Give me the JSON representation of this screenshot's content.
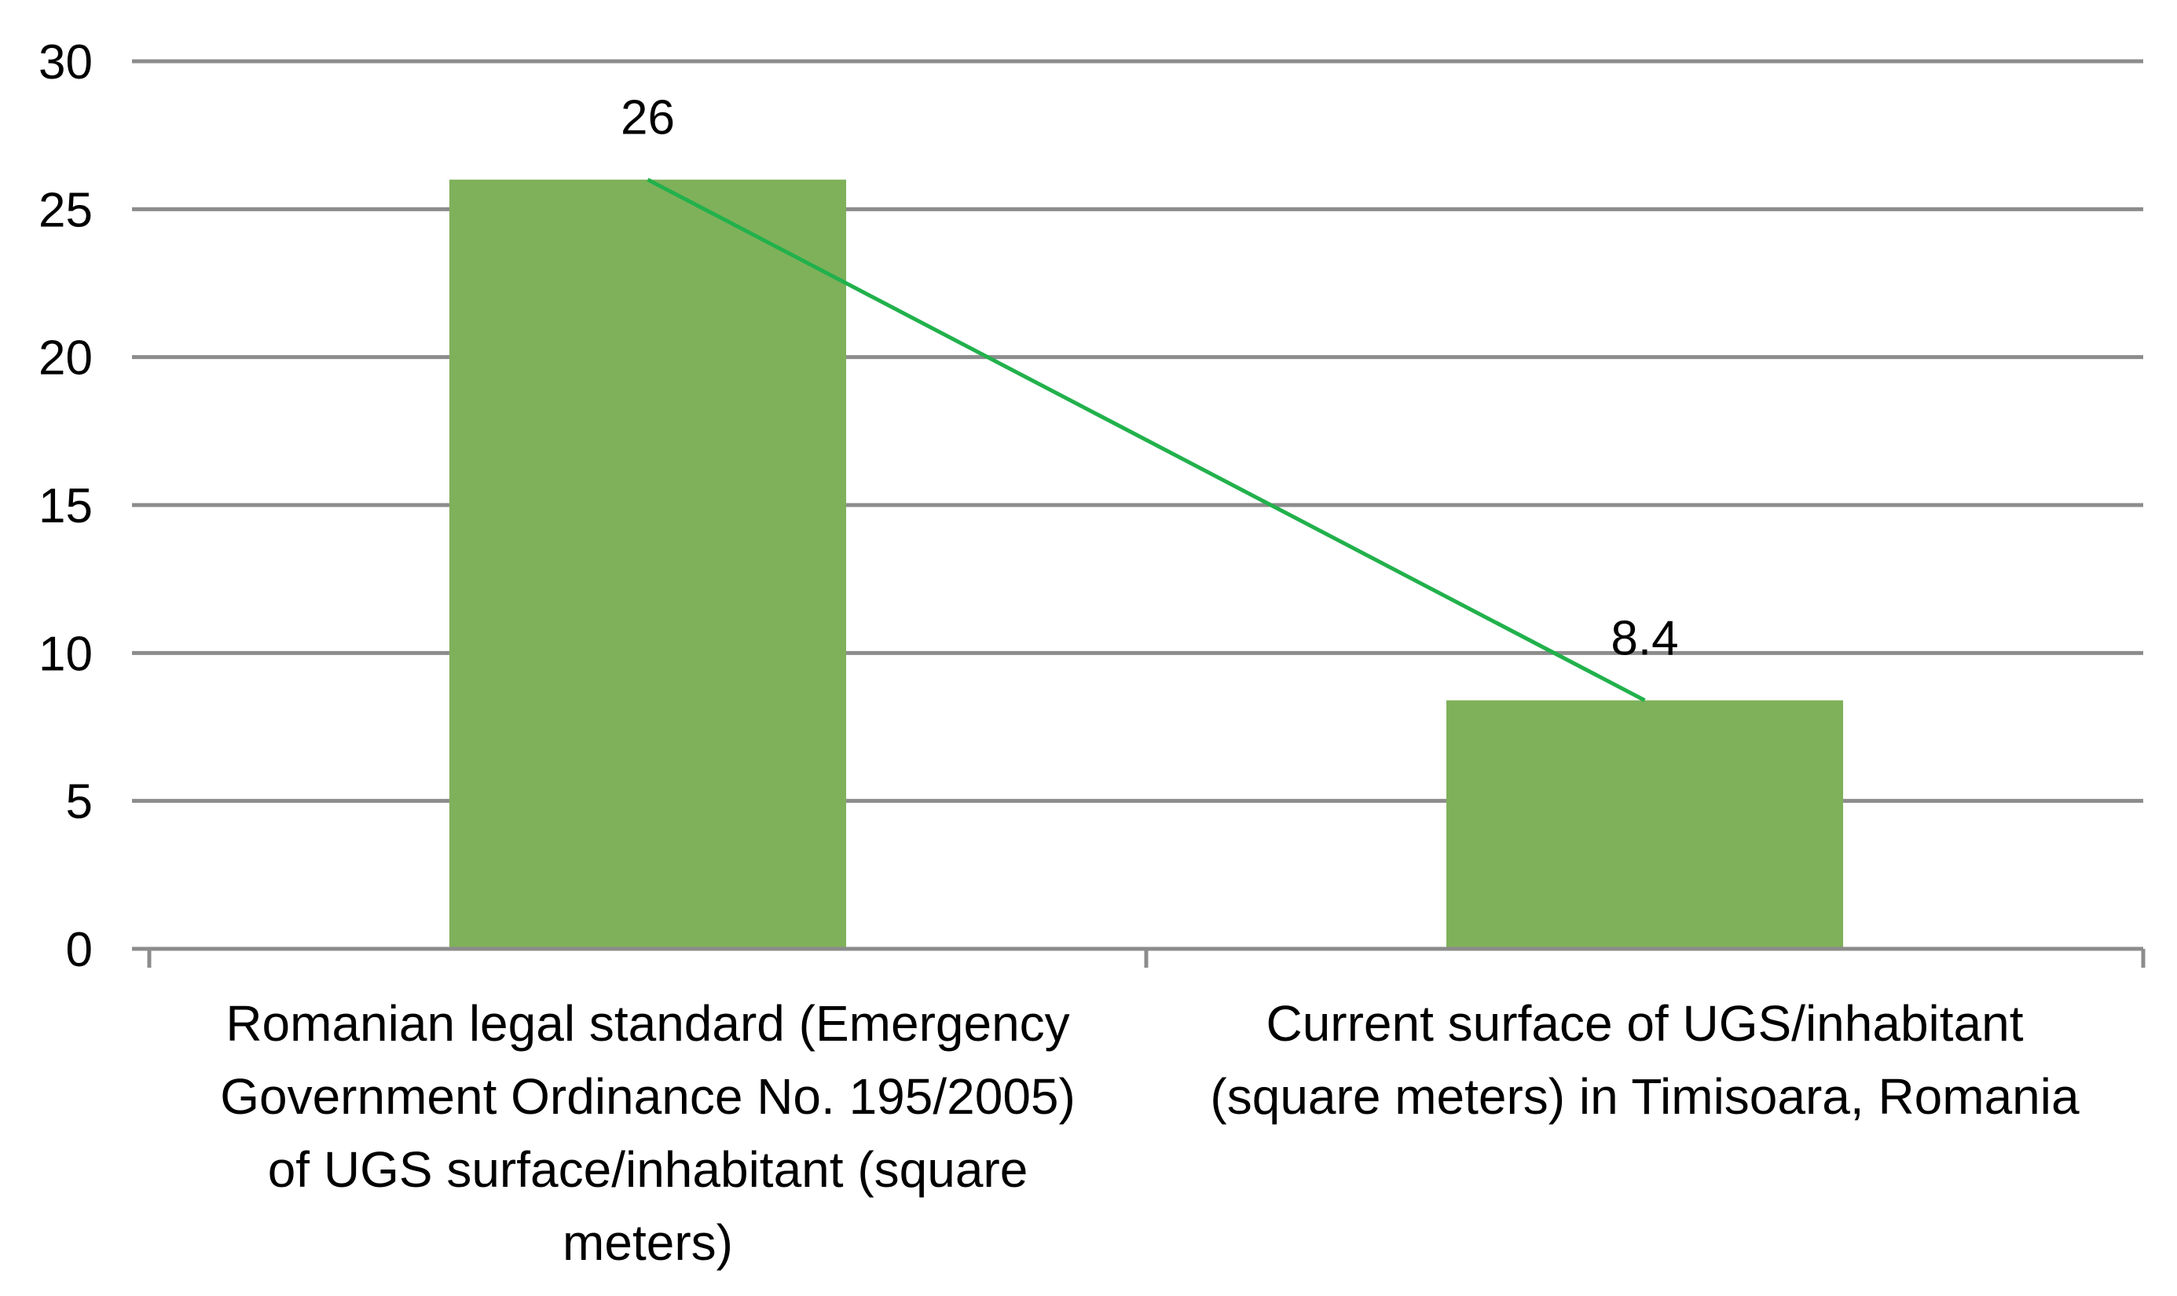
{
  "chart_data": {
    "type": "bar",
    "title": "",
    "xlabel": "",
    "ylabel": "",
    "ylim": [
      0,
      30
    ],
    "yticks": [
      0,
      5,
      10,
      15,
      20,
      25,
      30
    ],
    "grid": true,
    "categories": [
      "Romanian legal standard (Emergency Government Ordinance No. 195/2005) of UGS surface/inhabitant (square meters)",
      "Current surface of UGS/inhabitant (square meters) in Timisoara, Romania"
    ],
    "category_label_lines": [
      [
        "Romanian legal standard (Emergency",
        "Government Ordinance No. 195/2005)",
        "of UGS surface/inhabitant (square",
        "meters)"
      ],
      [
        "Current surface of UGS/inhabitant",
        "(square meters) in Timisoara, Romania"
      ]
    ],
    "values": [
      26,
      8.4
    ],
    "data_labels": [
      "26",
      "8.4"
    ],
    "trendline": true,
    "colors": {
      "bar": "#7fb15a",
      "trendline": "#22b14c",
      "grid": "#8c8c8c",
      "axis": "#8c8c8c",
      "text": "#000000"
    }
  }
}
